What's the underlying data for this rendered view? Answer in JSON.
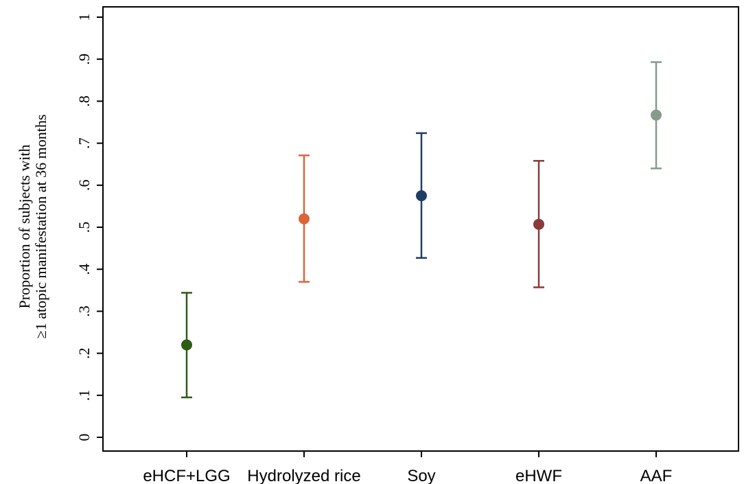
{
  "chart_data": {
    "type": "scatter",
    "ylabel_lines": [
      "Proportion of subjects with",
      "≥1 atopic manifestation at 36 months"
    ],
    "ylim": [
      0,
      1
    ],
    "yticks": [
      0,
      0.1,
      0.2,
      0.3,
      0.4,
      0.5,
      0.6,
      0.7,
      0.8,
      0.9,
      1
    ],
    "ytick_labels": [
      "0",
      ".1",
      ".2",
      ".3",
      ".4",
      ".5",
      ".6",
      ".7",
      ".8",
      ".9",
      "1"
    ],
    "categories": [
      "eHCF+LGG",
      "Hydrolyzed rice",
      "Soy",
      "eHWF",
      "AAF"
    ],
    "values": [
      0.22,
      0.52,
      0.575,
      0.507,
      0.767
    ],
    "ci_lower": [
      0.095,
      0.37,
      0.427,
      0.357,
      0.64
    ],
    "ci_upper": [
      0.344,
      0.671,
      0.724,
      0.658,
      0.893
    ],
    "colors": [
      "#2d5c12",
      "#d9663a",
      "#1f3e66",
      "#893a3b",
      "#869b8a"
    ],
    "grid": false,
    "legend": "none"
  }
}
